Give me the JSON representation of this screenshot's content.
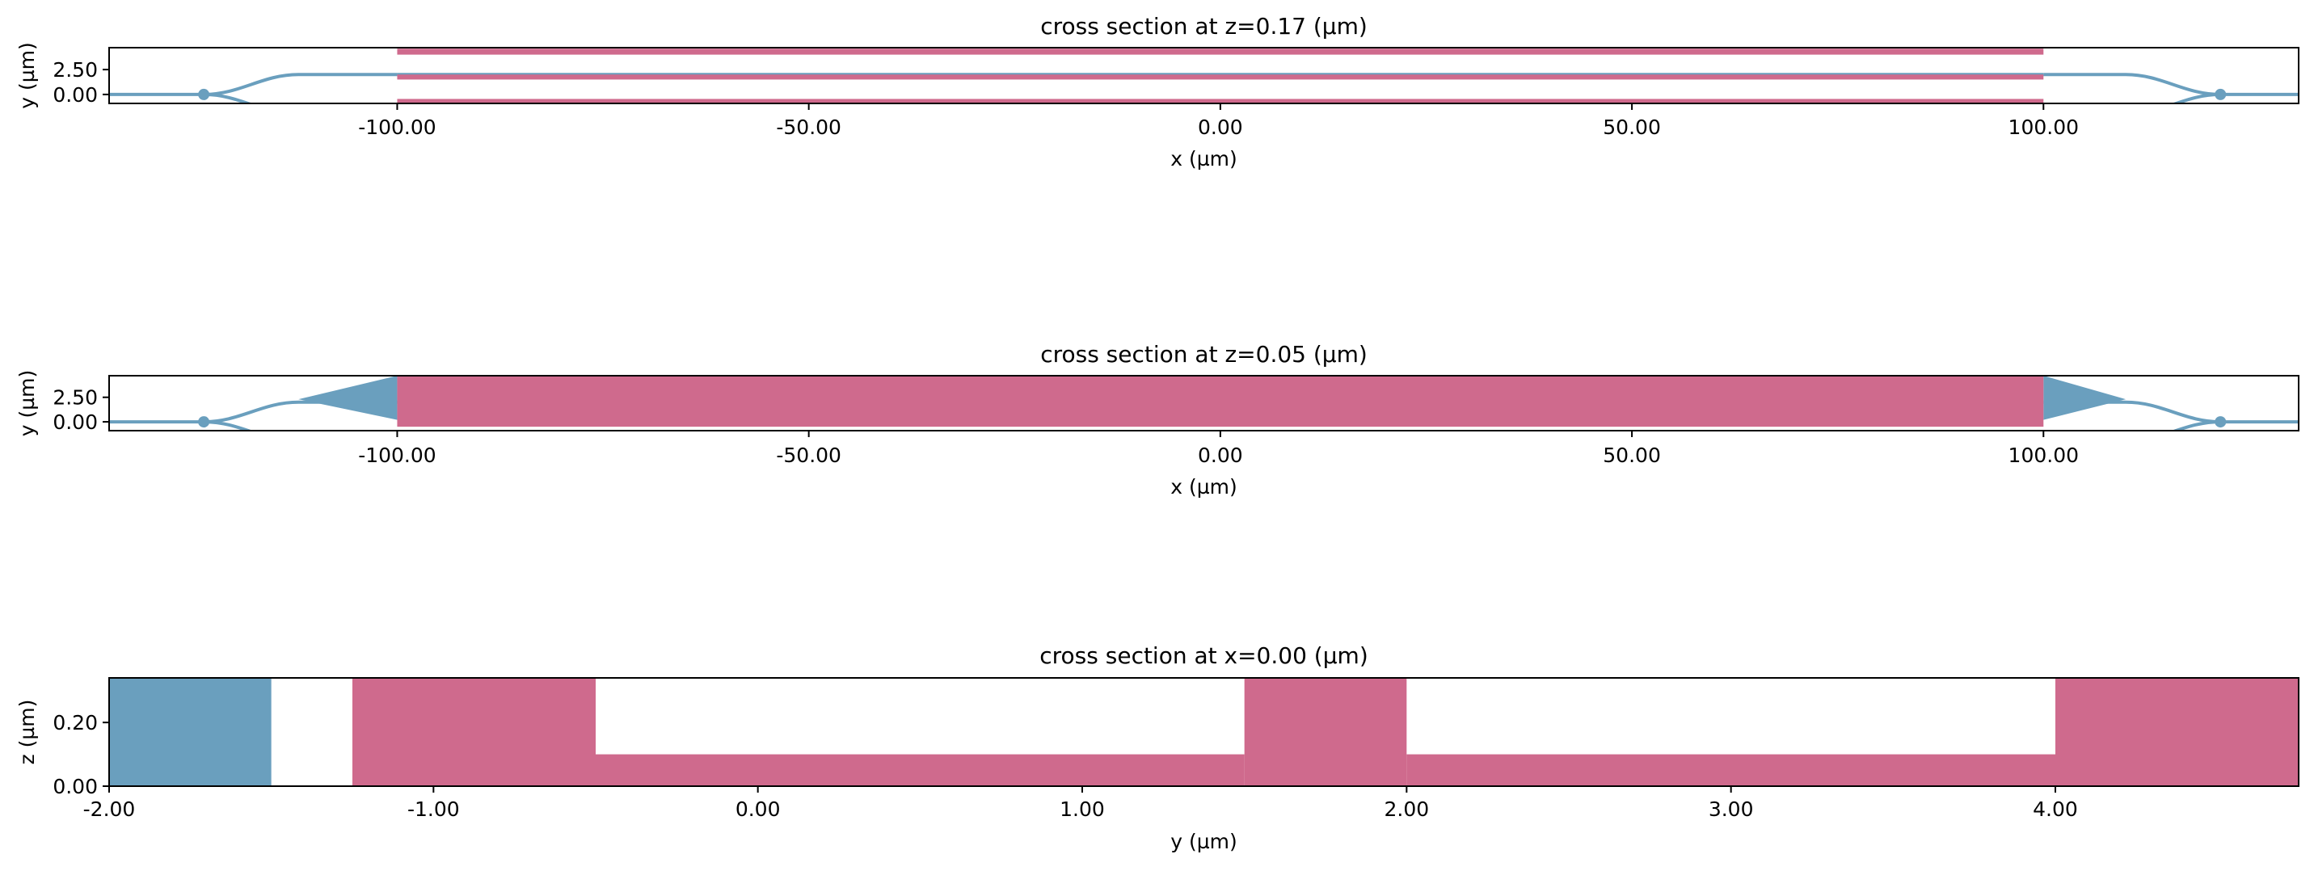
{
  "colors": {
    "waveguide": "#6a9fbe",
    "metal": "#cf6a8d",
    "frame": "#000000"
  },
  "chart_data": [
    {
      "type": "cross-section",
      "title": "cross section at z=0.17 (µm)",
      "xlabel": "x (µm)",
      "ylabel": "y (µm)",
      "xlim": [
        -135,
        131
      ],
      "ylim": [
        -0.9,
        4.7
      ],
      "xticks": [
        -100,
        -50,
        0,
        50,
        100
      ],
      "xtick_labels": [
        "-100.00",
        "-50.00",
        "0.00",
        "50.00",
        "100.00"
      ],
      "yticks": [
        2.5,
        0
      ],
      "ytick_labels": [
        "2.50",
        "0.00"
      ],
      "metal_rects": [
        {
          "x0": -100,
          "x1": 100,
          "y0": 4.0,
          "y1": 4.6
        },
        {
          "x0": -100,
          "x1": 100,
          "y0": 1.5,
          "y1": 2.0
        },
        {
          "x0": -100,
          "x1": 100,
          "y0": -1.0,
          "y1": -0.45
        }
      ],
      "has_taper": false
    },
    {
      "type": "cross-section",
      "title": "cross section at z=0.05 (µm)",
      "xlabel": "x (µm)",
      "ylabel": "y (µm)",
      "xlim": [
        -135,
        131
      ],
      "ylim": [
        -0.9,
        4.7
      ],
      "xticks": [
        -100,
        -50,
        0,
        50,
        100
      ],
      "xtick_labels": [
        "-100.00",
        "-50.00",
        "0.00",
        "50.00",
        "100.00"
      ],
      "yticks": [
        2.5,
        0
      ],
      "ytick_labels": [
        "2.50",
        "0.00"
      ],
      "metal_rects": [
        {
          "x0": -100,
          "x1": 100,
          "y0": -0.5,
          "y1": 4.7
        }
      ],
      "has_taper": true
    },
    {
      "type": "cross-section",
      "title": "cross section at x=0.00 (µm)",
      "xlabel": "y (µm)",
      "ylabel": "z (µm)",
      "xlim": [
        -2.0,
        4.75
      ],
      "ylim": [
        0,
        0.34
      ],
      "xticks": [
        -2,
        -1,
        0,
        1,
        2,
        3,
        4
      ],
      "xtick_labels": [
        "-2.00",
        "-1.00",
        "0.00",
        "1.00",
        "2.00",
        "3.00",
        "4.00"
      ],
      "yticks": [
        0.2,
        0
      ],
      "ytick_labels": [
        "0.20",
        "0.00"
      ],
      "waveguide_rects": [
        {
          "x0": -2.0,
          "x1": -1.5,
          "y0": 0,
          "y1": 0.34
        }
      ],
      "metal_rects": [
        {
          "x0": -1.25,
          "x1": -0.5,
          "y0": 0,
          "y1": 0.34
        },
        {
          "x0": -0.5,
          "x1": 1.5,
          "y0": 0,
          "y1": 0.1
        },
        {
          "x0": 1.5,
          "x1": 2.0,
          "y0": 0,
          "y1": 0.34
        },
        {
          "x0": 2.0,
          "x1": 4.0,
          "y0": 0,
          "y1": 0.1
        },
        {
          "x0": 4.0,
          "x1": 4.75,
          "y0": 0,
          "y1": 0.34
        }
      ]
    }
  ]
}
